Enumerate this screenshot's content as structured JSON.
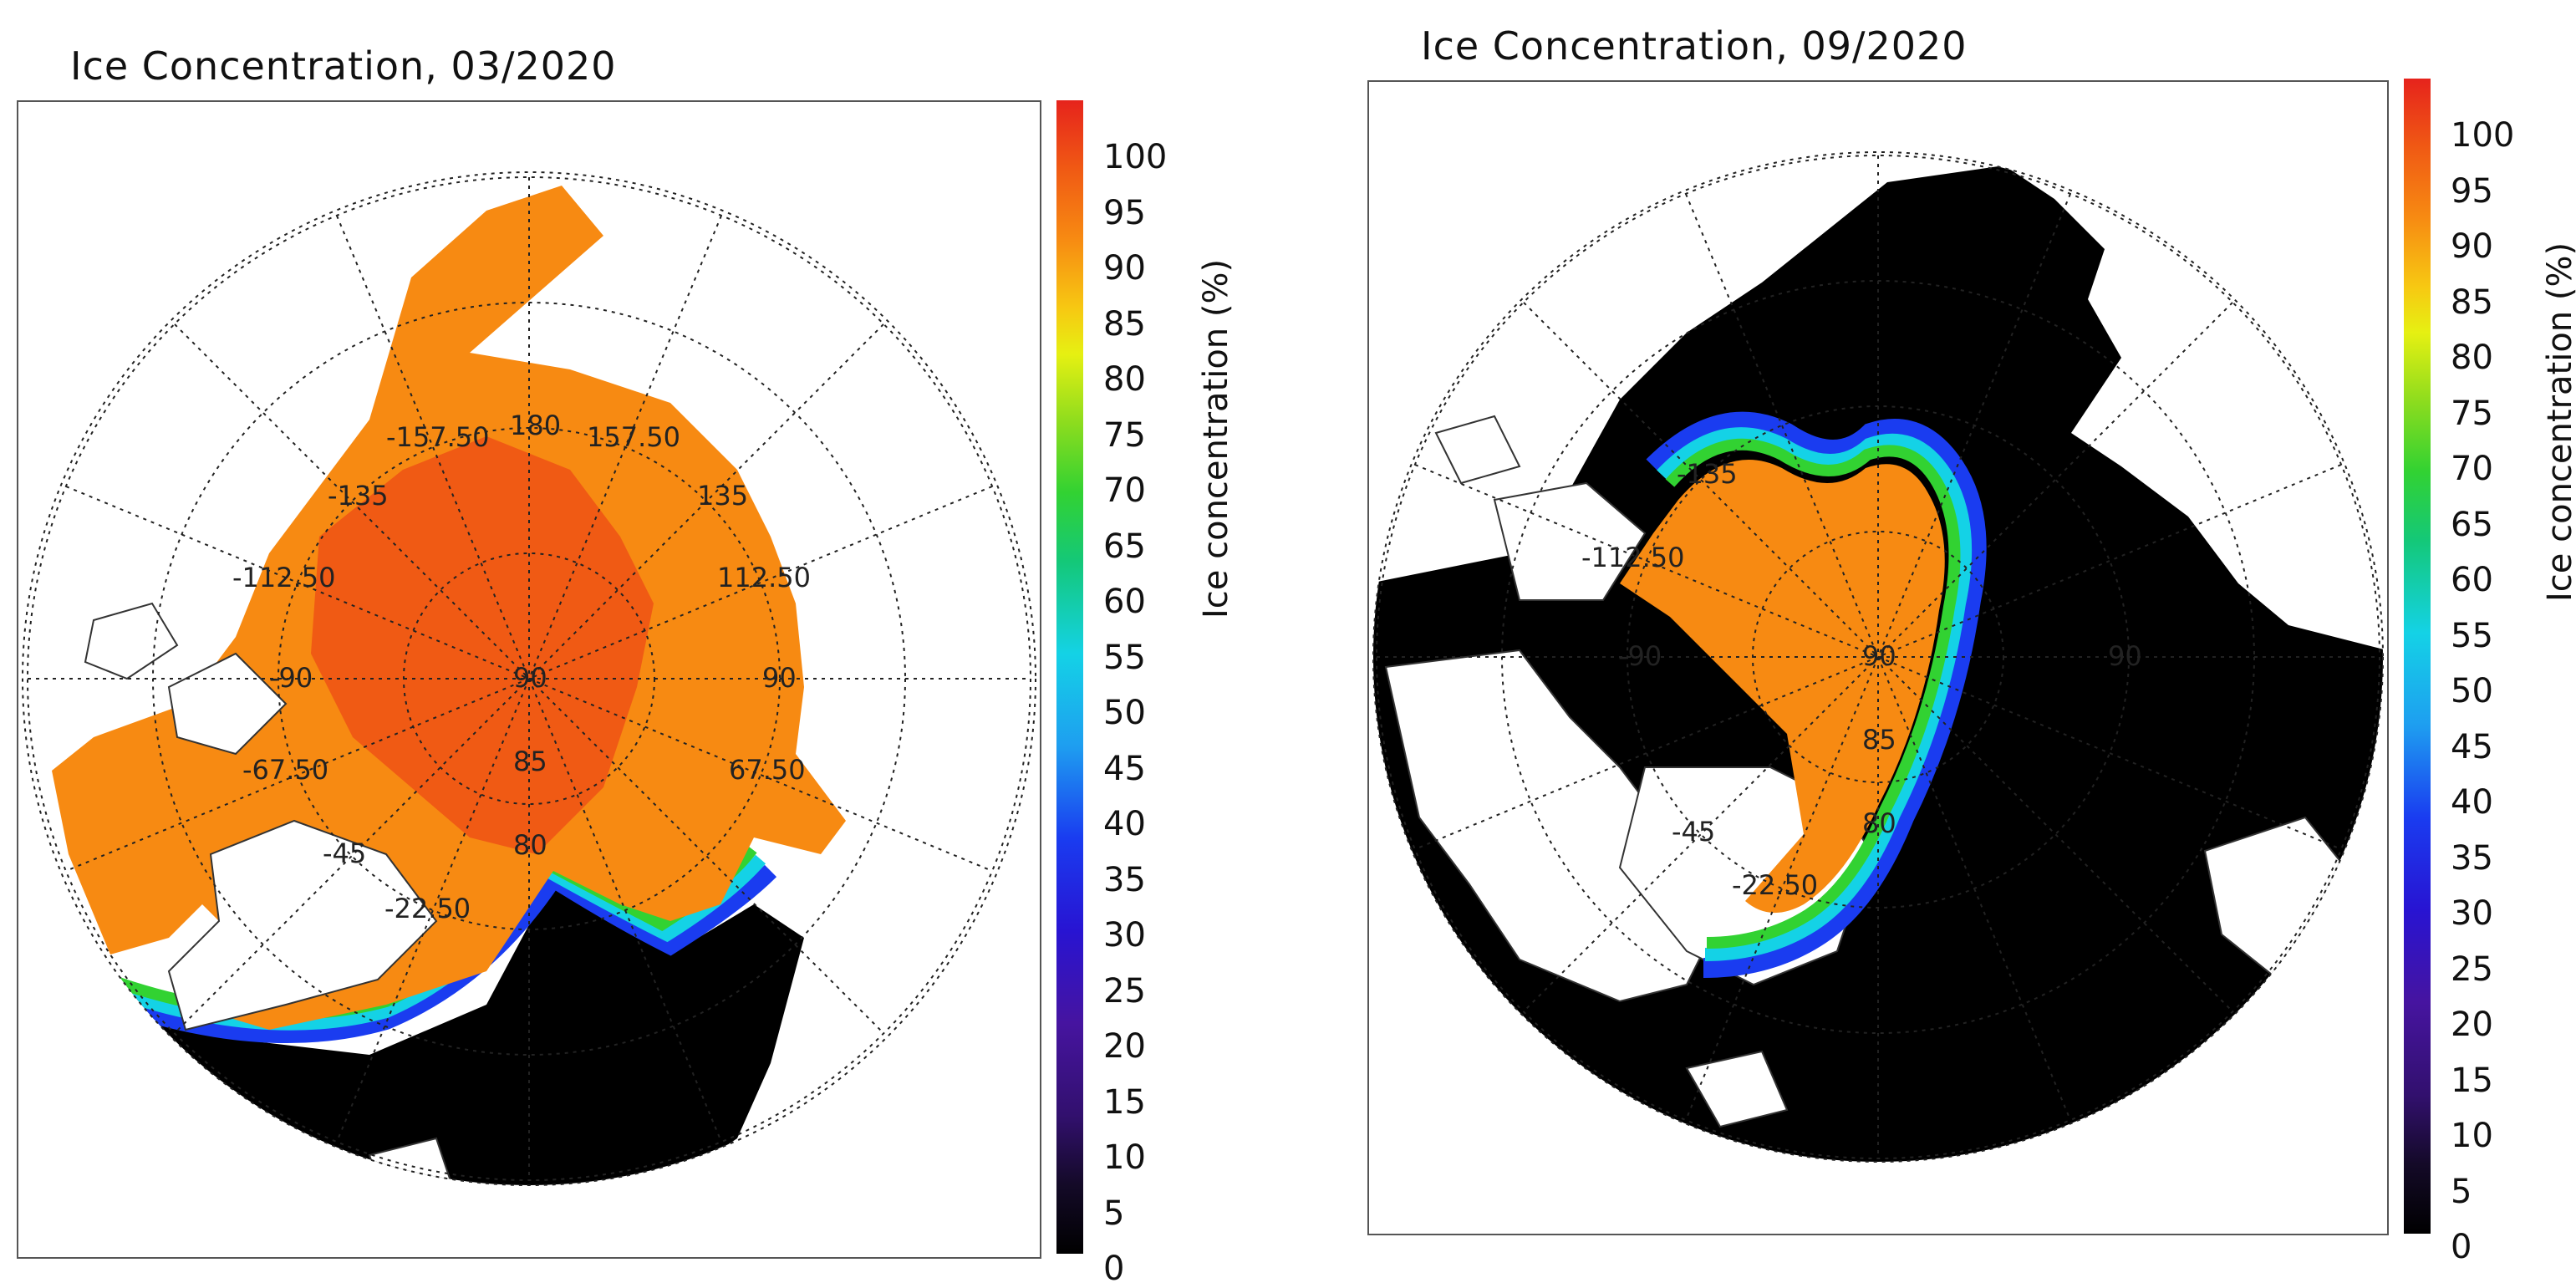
{
  "maps": [
    {
      "title": "Ice Concentration, 03/2020",
      "grid_labels": {
        "lon": [
          "180",
          "157.50",
          "-157.50",
          "-135",
          "135",
          "-112.50",
          "112.50",
          "-90",
          "90",
          "-67.50",
          "67.50",
          "-45",
          "-22.50"
        ],
        "lat": [
          "90",
          "85",
          "80"
        ]
      },
      "colorbar": {
        "label": "Ice concentration (%)",
        "ticks": [
          "100",
          "95",
          "90",
          "85",
          "80",
          "75",
          "70",
          "65",
          "60",
          "55",
          "50",
          "45",
          "40",
          "35",
          "30",
          "25",
          "20",
          "15",
          "10",
          "5",
          "0"
        ]
      }
    },
    {
      "title": "Ice Concentration, 09/2020",
      "grid_labels": {
        "lon": [
          "-135",
          "-112.50",
          "-90",
          "90",
          "-45",
          "-22.50"
        ],
        "lat": [
          "90",
          "85",
          "80"
        ]
      },
      "colorbar": {
        "label": "Ice concentration (%)",
        "ticks": [
          "100",
          "95",
          "90",
          "85",
          "80",
          "75",
          "70",
          "65",
          "60",
          "55",
          "50",
          "45",
          "40",
          "35",
          "30",
          "25",
          "20",
          "15",
          "10",
          "5",
          "0"
        ]
      }
    }
  ],
  "colors": {
    "ocean": "#000000",
    "land": "#ffffff",
    "ice_full": "#f78a12",
    "ice_dense": "#f05a14",
    "edge_green": "#32d232",
    "edge_cyan": "#14d2e6",
    "edge_blue": "#1a3cf0"
  }
}
